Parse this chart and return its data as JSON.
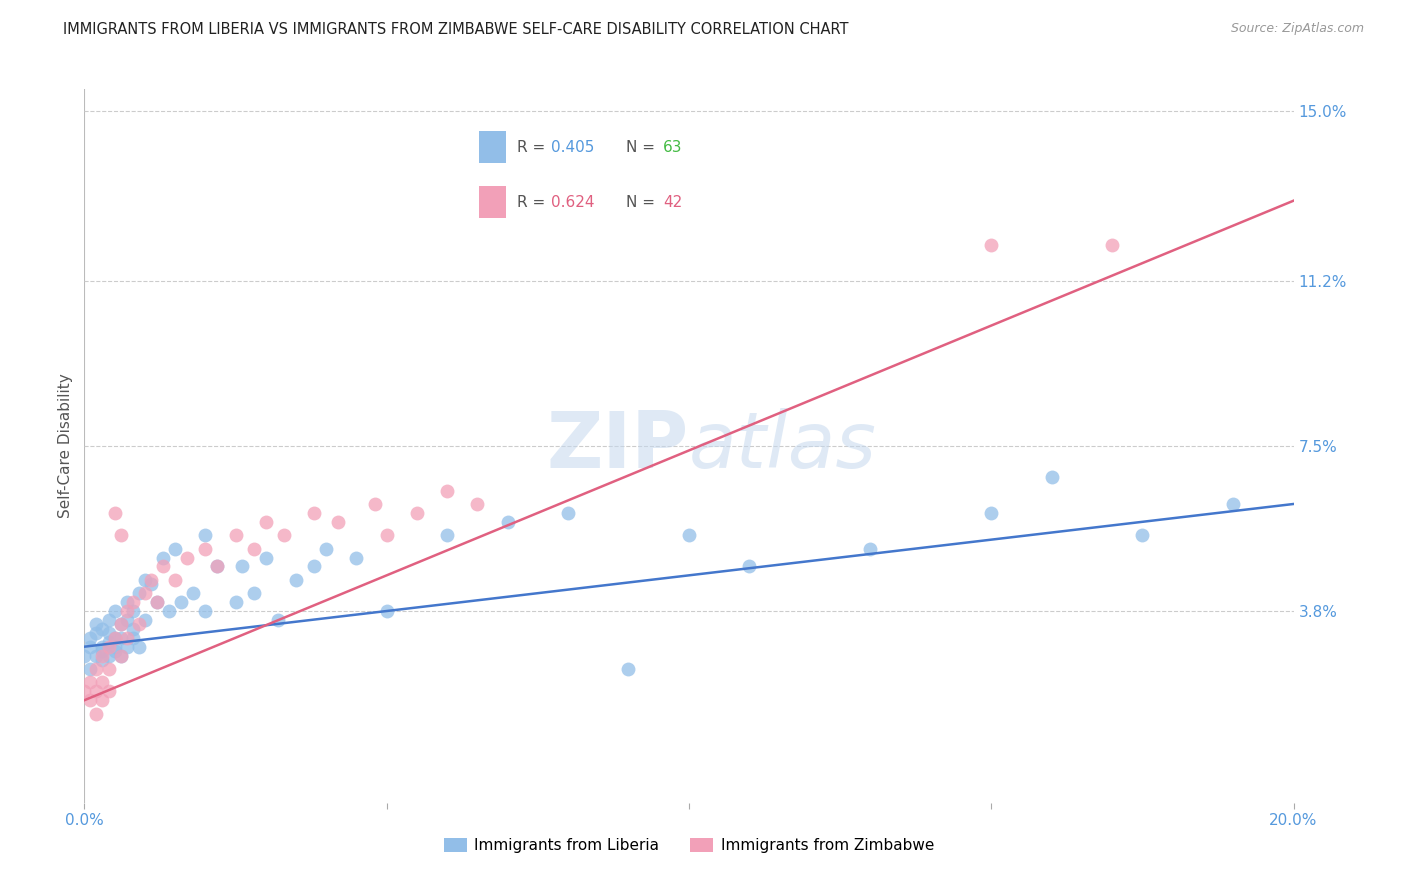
{
  "title": "IMMIGRANTS FROM LIBERIA VS IMMIGRANTS FROM ZIMBABWE SELF-CARE DISABILITY CORRELATION CHART",
  "source": "Source: ZipAtlas.com",
  "ylabel": "Self-Care Disability",
  "xlim": [
    0.0,
    0.2
  ],
  "ylim": [
    -0.005,
    0.155
  ],
  "ytick_labels_right": [
    "15.0%",
    "11.2%",
    "7.5%",
    "3.8%"
  ],
  "ytick_vals_right": [
    0.15,
    0.112,
    0.075,
    0.038
  ],
  "watermark": "ZIPatlas",
  "liberia_R": 0.405,
  "liberia_N": 63,
  "zimbabwe_R": 0.624,
  "zimbabwe_N": 42,
  "liberia_color": "#92BEE8",
  "zimbabwe_color": "#F2A0B8",
  "liberia_line_color": "#4477CC",
  "zimbabwe_line_color": "#E06080",
  "background_color": "#FFFFFF",
  "grid_color": "#CCCCCC",
  "title_color": "#222222",
  "axis_label_color": "#555555",
  "right_tick_color": "#5599DD",
  "legend_box_color": "#DDDDDD",
  "liberia_x": [
    0.0,
    0.001,
    0.001,
    0.001,
    0.002,
    0.002,
    0.002,
    0.003,
    0.003,
    0.003,
    0.003,
    0.004,
    0.004,
    0.004,
    0.004,
    0.005,
    0.005,
    0.005,
    0.005,
    0.006,
    0.006,
    0.006,
    0.007,
    0.007,
    0.007,
    0.008,
    0.008,
    0.008,
    0.009,
    0.009,
    0.01,
    0.01,
    0.011,
    0.012,
    0.013,
    0.014,
    0.015,
    0.016,
    0.018,
    0.02,
    0.02,
    0.022,
    0.025,
    0.026,
    0.028,
    0.03,
    0.032,
    0.035,
    0.038,
    0.04,
    0.045,
    0.05,
    0.06,
    0.07,
    0.08,
    0.09,
    0.1,
    0.11,
    0.13,
    0.15,
    0.16,
    0.175,
    0.19
  ],
  "liberia_y": [
    0.028,
    0.03,
    0.025,
    0.032,
    0.033,
    0.028,
    0.035,
    0.03,
    0.027,
    0.034,
    0.029,
    0.036,
    0.031,
    0.028,
    0.033,
    0.038,
    0.03,
    0.032,
    0.029,
    0.035,
    0.032,
    0.028,
    0.04,
    0.036,
    0.03,
    0.038,
    0.034,
    0.032,
    0.042,
    0.03,
    0.045,
    0.036,
    0.044,
    0.04,
    0.05,
    0.038,
    0.052,
    0.04,
    0.042,
    0.055,
    0.038,
    0.048,
    0.04,
    0.048,
    0.042,
    0.05,
    0.036,
    0.045,
    0.048,
    0.052,
    0.05,
    0.038,
    0.055,
    0.058,
    0.06,
    0.025,
    0.055,
    0.048,
    0.052,
    0.06,
    0.068,
    0.055,
    0.062
  ],
  "zimbabwe_x": [
    0.0,
    0.001,
    0.001,
    0.002,
    0.002,
    0.002,
    0.003,
    0.003,
    0.003,
    0.004,
    0.004,
    0.004,
    0.005,
    0.005,
    0.006,
    0.006,
    0.006,
    0.007,
    0.007,
    0.008,
    0.009,
    0.01,
    0.011,
    0.012,
    0.013,
    0.015,
    0.017,
    0.02,
    0.022,
    0.025,
    0.028,
    0.03,
    0.033,
    0.038,
    0.042,
    0.048,
    0.05,
    0.055,
    0.06,
    0.065,
    0.15,
    0.17
  ],
  "zimbabwe_y": [
    0.02,
    0.022,
    0.018,
    0.025,
    0.02,
    0.015,
    0.028,
    0.022,
    0.018,
    0.03,
    0.025,
    0.02,
    0.032,
    0.06,
    0.035,
    0.028,
    0.055,
    0.038,
    0.032,
    0.04,
    0.035,
    0.042,
    0.045,
    0.04,
    0.048,
    0.045,
    0.05,
    0.052,
    0.048,
    0.055,
    0.052,
    0.058,
    0.055,
    0.06,
    0.058,
    0.062,
    0.055,
    0.06,
    0.065,
    0.062,
    0.12,
    0.12
  ],
  "liberia_line_x0": 0.0,
  "liberia_line_x1": 0.2,
  "liberia_line_y0": 0.03,
  "liberia_line_y1": 0.062,
  "zimbabwe_line_x0": 0.0,
  "zimbabwe_line_x1": 0.2,
  "zimbabwe_line_y0": 0.018,
  "zimbabwe_line_y1": 0.13
}
